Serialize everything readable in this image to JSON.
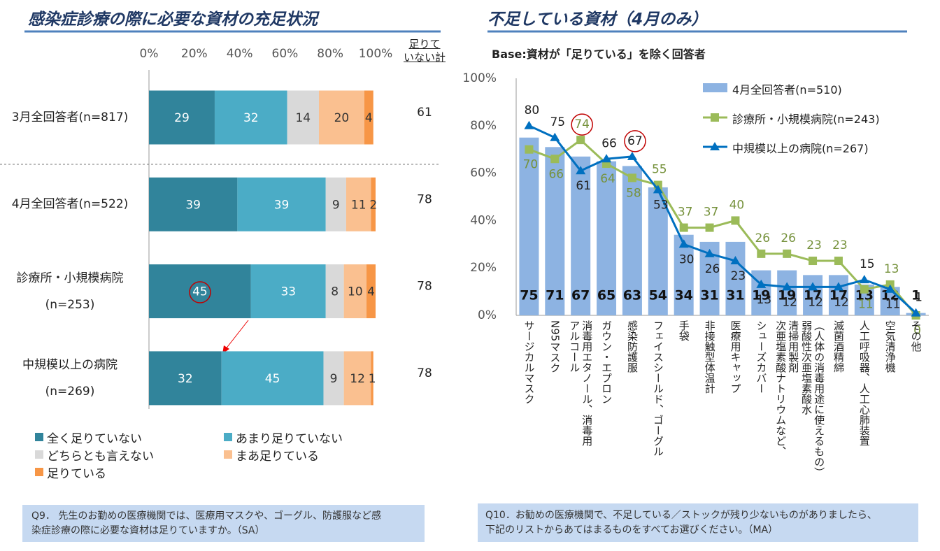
{
  "chart_data": [
    {
      "type": "bar",
      "orientation": "horizontal",
      "stacked": true,
      "title": "感染症診療の際に必要な資材の充足状況",
      "categories": [
        "3月全回答者(n=817)",
        "4月全回答者(n=522)",
        "診療所・小規模病院\n(n=253)",
        "中規模以上の病院\n(n=269)"
      ],
      "series": [
        {
          "name": "全く足りていない",
          "color": "#31849b",
          "values": [
            29,
            39,
            45,
            32
          ]
        },
        {
          "name": "あまり足りていない",
          "color": "#4bacc6",
          "values": [
            32,
            39,
            33,
            45
          ]
        },
        {
          "name": "どちらとも言えない",
          "color": "#d9d9d9",
          "values": [
            14,
            9,
            8,
            9
          ]
        },
        {
          "name": "まあ足りている",
          "color": "#fac090",
          "values": [
            20,
            11,
            10,
            12
          ]
        },
        {
          "name": "足りている",
          "color": "#f79646",
          "values": [
            4,
            2,
            4,
            1
          ]
        }
      ],
      "totals": {
        "label": "足りて\nいない計",
        "values": [
          61,
          78,
          78,
          78
        ]
      },
      "xlim": [
        0,
        100
      ],
      "xticks": [
        {
          "value": 0,
          "label": "0%"
        },
        {
          "value": 20,
          "label": "20%"
        },
        {
          "value": 40,
          "label": "40%"
        },
        {
          "value": 60,
          "label": "60%"
        },
        {
          "value": 80,
          "label": "80%"
        },
        {
          "value": 100,
          "label": "100%"
        }
      ],
      "note": "Q9． 先生のお勤めの医療機関では、医療用マスクや、ゴーグル、防護服など感\n染症診療の際に必要な資材は足りていますか。（SA）"
    },
    {
      "type": "combo",
      "title": "不足している資材（4月のみ）",
      "subtitle": "Base:資材が「足りている」を除く回答者",
      "categories": [
        "サージカルマスク",
        "N95マスク",
        "アルコール\n消毒用エタノール、消毒用",
        "ガウン・エプロン",
        "感染防護服",
        "フェイスシールド、ゴーグル",
        "手袋",
        "非接触型体温計",
        "医療用キャップ",
        "シューズカバー",
        "次亜塩素酸ナトリウムなど、\n清掃用製剤",
        "弱酸性次亜塩素酸水\n（人体の消毒用途に使えるもの）",
        "滅菌酒精綿",
        "人工呼吸器、人工心肺装置",
        "空気清浄機",
        "その他"
      ],
      "series": [
        {
          "name": "4月全回答者(n=510)",
          "type": "bar",
          "color": "#8db3e2",
          "values": [
            75,
            71,
            67,
            65,
            63,
            54,
            34,
            31,
            31,
            19,
            19,
            17,
            17,
            13,
            12,
            1
          ]
        },
        {
          "name": "診療所・小規模病院(n=243)",
          "type": "line",
          "color": "#9bbb59",
          "values": [
            70,
            66,
            74,
            64,
            58,
            55,
            37,
            37,
            40,
            26,
            26,
            23,
            23,
            11,
            13,
            0
          ]
        },
        {
          "name": "中規模以上の病院(n=267)",
          "type": "line",
          "color": "#0070c0",
          "values": [
            80,
            75,
            61,
            66,
            67,
            53,
            30,
            26,
            23,
            13,
            12,
            12,
            12,
            15,
            11,
            1
          ]
        }
      ],
      "ylim": [
        0,
        100
      ],
      "yticks": [
        {
          "value": 0,
          "label": "0%"
        },
        {
          "value": 20,
          "label": "20%"
        },
        {
          "value": 40,
          "label": "40%"
        },
        {
          "value": 60,
          "label": "60%"
        },
        {
          "value": 80,
          "label": "80%"
        },
        {
          "value": 100,
          "label": "100%"
        }
      ],
      "note": "Q10．お勧めの医療機関で、不足している／ストックが残り少ないものがありましたら、\n下記のリストからあてはまるものをすべてお選びください。（MA）"
    }
  ]
}
